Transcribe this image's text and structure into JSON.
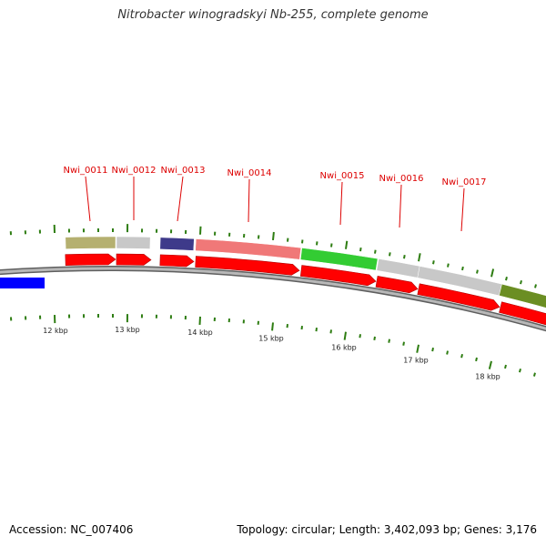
{
  "title": "Nitrobacter winogradskyi Nb-255, complete genome",
  "footer": {
    "accession": "Accession: NC_007406",
    "summary": "Topology: circular; Length: 3,402,093 bp; Genes: 3,176"
  },
  "colors": {
    "label_red": "#dd0000",
    "gene_red": "#ff0000",
    "tick_green": "#2e7d12",
    "backbone_grey": "#8a8a8a",
    "blue_feature": "#0000ff"
  },
  "scale_labels": [
    "12 kbp",
    "13 kbp",
    "14 kbp",
    "15 kbp",
    "16 kbp",
    "17 kbp",
    "18 kbp"
  ],
  "gene_labels": [
    "Nwi_0011",
    "Nwi_0012",
    "Nwi_0013",
    "Nwi_0014",
    "Nwi_0015",
    "Nwi_0016",
    "Nwi_0017"
  ],
  "cog_bars": [
    {
      "gene": "Nwi_0011",
      "color": "#b5b070"
    },
    {
      "gene": "Nwi_0012",
      "color": "#c8c8c8"
    },
    {
      "gene": "Nwi_0013",
      "color": "#3e3a8a"
    },
    {
      "gene": "Nwi_0014",
      "color": "#f07878"
    },
    {
      "gene": "Nwi_0015",
      "color": "#33cc33"
    },
    {
      "gene": "Nwi_0016",
      "color": "#c8c8c8"
    },
    {
      "gene": "Nwi_0017",
      "color": "#c8c8c8"
    },
    {
      "gene": "",
      "color": "#6b8e23"
    }
  ]
}
